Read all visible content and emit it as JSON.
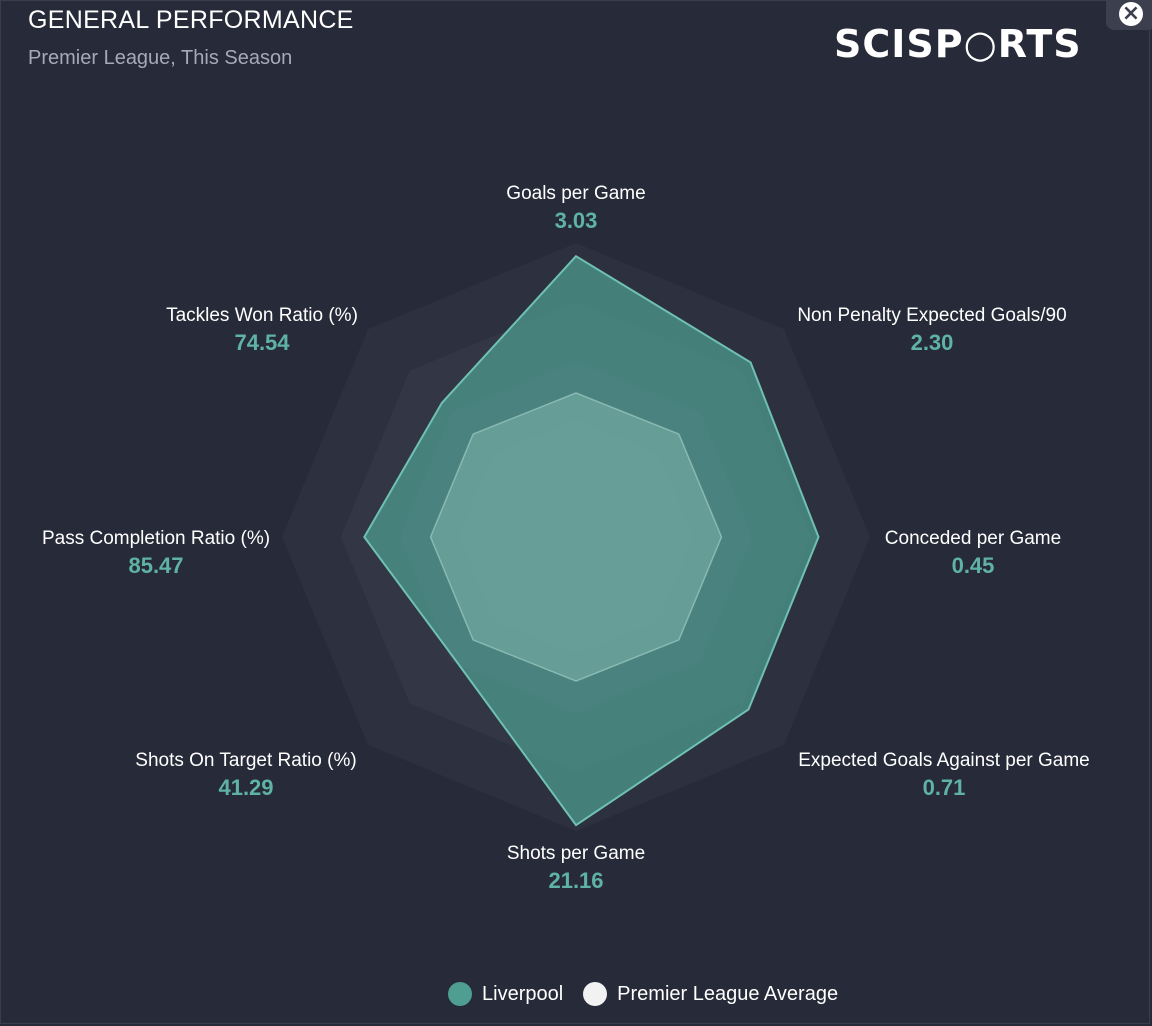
{
  "header": {
    "title": "GENERAL PERFORMANCE",
    "subtitle": "Premier League, This Season",
    "logo_text": "SCISP○RTS",
    "close_icon": "close-icon"
  },
  "colors": {
    "team": "#4f9e92",
    "team_stroke": "#6ec1b3",
    "average": "#6f9d98",
    "value_text": "#5fb3a5",
    "ring_outer": "#2d303e",
    "ring_inner": "#3b3e4d"
  },
  "chart_data": {
    "type": "radar",
    "title": "GENERAL PERFORMANCE",
    "subtitle": "Premier League, This Season",
    "axes": [
      {
        "label": "Goals per Game",
        "value": "3.03"
      },
      {
        "label": "Non Penalty Expected Goals/90",
        "value": "2.30"
      },
      {
        "label": "Conceded per Game",
        "value": "0.45"
      },
      {
        "label": "Expected Goals Against per Game",
        "value": "0.71"
      },
      {
        "label": "Shots per Game",
        "value": "21.16"
      },
      {
        "label": "Shots On Target Ratio (%)",
        "value": "41.29"
      },
      {
        "label": "Pass Completion Ratio (%)",
        "value": "85.47"
      },
      {
        "label": "Tackles Won Ratio (%)",
        "value": "74.54"
      }
    ],
    "scale": [
      0,
      1
    ],
    "rings": 5,
    "series": [
      {
        "name": "Liverpool",
        "values": [
          0.955,
          0.84,
          0.825,
          0.83,
          0.98,
          0.585,
          0.72,
          0.645
        ]
      },
      {
        "name": "Premier League Average",
        "values": [
          0.49,
          0.495,
          0.495,
          0.495,
          0.49,
          0.495,
          0.495,
          0.495
        ]
      }
    ],
    "legend_position": "bottom-center"
  },
  "legend": {
    "items": [
      {
        "label": "Liverpool",
        "color": "#4f9e92"
      },
      {
        "label": "Premier League Average",
        "color": "#f2f2f2"
      }
    ]
  }
}
